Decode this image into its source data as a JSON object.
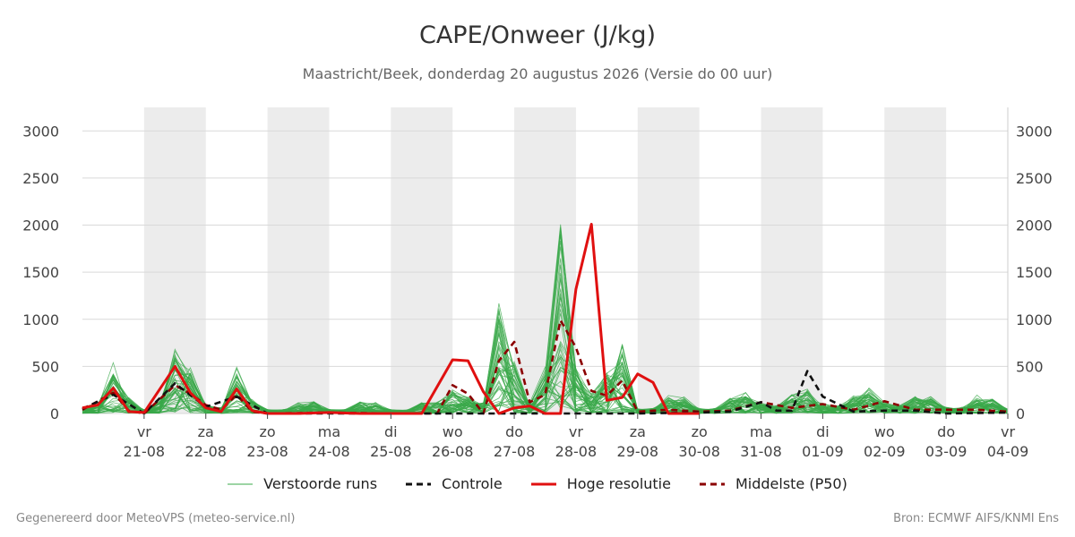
{
  "title": "CAPE/Onweer (J/kg)",
  "subtitle": "Maastricht/Beek, donderdag 20 augustus 2026 (Versie do 00 uur)",
  "footer_left": "Gegenereerd door MeteoVPS (meteo-service.nl)",
  "footer_right": "Bron: ECMWF AIFS/KNMI Ens",
  "legend": [
    {
      "label": "Verstoorde runs",
      "color": "#3aa84a",
      "style": "thin"
    },
    {
      "label": "Controle",
      "color": "#111111",
      "style": "dashed"
    },
    {
      "label": "Hoge resolutie",
      "color": "#e01010",
      "style": "solid"
    },
    {
      "label": "Middelste (P50)",
      "color": "#8b0000",
      "style": "dashed"
    }
  ],
  "chart_data": {
    "type": "line",
    "ylim": [
      0,
      3250
    ],
    "yticks": [
      "0",
      "500",
      "1000",
      "1500",
      "2000",
      "2500",
      "3000"
    ],
    "x_start": "2026-08-20T00:00",
    "x_end": "2026-09-04T00:00",
    "day_labels": [
      {
        "day": "vr",
        "date": "21-08"
      },
      {
        "day": "za",
        "date": "22-08"
      },
      {
        "day": "zo",
        "date": "23-08"
      },
      {
        "day": "ma",
        "date": "24-08"
      },
      {
        "day": "di",
        "date": "25-08"
      },
      {
        "day": "wo",
        "date": "26-08"
      },
      {
        "day": "do",
        "date": "27-08"
      },
      {
        "day": "vr",
        "date": "28-08"
      },
      {
        "day": "za",
        "date": "29-08"
      },
      {
        "day": "zo",
        "date": "30-08"
      },
      {
        "day": "ma",
        "date": "31-08"
      },
      {
        "day": "di",
        "date": "01-09"
      },
      {
        "day": "wo",
        "date": "02-09"
      },
      {
        "day": "do",
        "date": "03-09"
      },
      {
        "day": "vr",
        "date": "04-09"
      }
    ],
    "shaded_days": [
      "2026-08-21",
      "2026-08-23",
      "2026-08-25",
      "2026-08-27",
      "2026-08-29",
      "2026-08-31",
      "2026-09-02"
    ],
    "grid": true,
    "series": [
      {
        "name": "Hoge resolutie",
        "color": "#e01010",
        "style": "solid",
        "x": [
          "2026-08-20T00:00",
          "2026-08-20T06:00",
          "2026-08-20T12:00",
          "2026-08-20T18:00",
          "2026-08-21T00:00",
          "2026-08-21T12:00",
          "2026-08-21T18:00",
          "2026-08-22T00:00",
          "2026-08-22T06:00",
          "2026-08-22T12:00",
          "2026-08-22T18:00",
          "2026-08-23T00:00",
          "2026-08-23T12:00",
          "2026-08-24T00:00",
          "2026-08-24T12:00",
          "2026-08-25T00:00",
          "2026-08-25T12:00",
          "2026-08-26T00:00",
          "2026-08-26T06:00",
          "2026-08-26T12:00",
          "2026-08-26T18:00",
          "2026-08-27T00:00",
          "2026-08-27T06:00",
          "2026-08-27T12:00",
          "2026-08-27T18:00",
          "2026-08-28T00:00",
          "2026-08-28T06:00",
          "2026-08-28T12:00",
          "2026-08-28T18:00",
          "2026-08-29T00:00",
          "2026-08-29T06:00",
          "2026-08-29T12:00",
          "2026-08-30T00:00"
        ],
        "values": [
          60,
          90,
          270,
          20,
          10,
          500,
          220,
          60,
          20,
          260,
          30,
          0,
          0,
          10,
          0,
          0,
          0,
          570,
          560,
          230,
          0,
          60,
          80,
          0,
          0,
          1320,
          2010,
          140,
          170,
          420,
          330,
          0,
          0
        ]
      },
      {
        "name": "Middelste (P50)",
        "color": "#8b0000",
        "style": "dashed",
        "x": [
          "2026-08-20T00:00",
          "2026-08-20T12:00",
          "2026-08-20T18:00",
          "2026-08-21T00:00",
          "2026-08-21T12:00",
          "2026-08-21T18:00",
          "2026-08-22T00:00",
          "2026-08-22T06:00",
          "2026-08-22T12:00",
          "2026-08-22T18:00",
          "2026-08-23T00:00",
          "2026-08-24T00:00",
          "2026-08-25T00:00",
          "2026-08-25T12:00",
          "2026-08-25T18:00",
          "2026-08-26T00:00",
          "2026-08-26T06:00",
          "2026-08-26T12:00",
          "2026-08-26T18:00",
          "2026-08-27T00:00",
          "2026-08-27T06:00",
          "2026-08-27T12:00",
          "2026-08-27T18:00",
          "2026-08-28T00:00",
          "2026-08-28T06:00",
          "2026-08-28T12:00",
          "2026-08-28T18:00",
          "2026-08-29T00:00",
          "2026-08-29T12:00",
          "2026-08-30T00:00",
          "2026-08-30T12:00",
          "2026-08-31T00:00",
          "2026-08-31T12:00",
          "2026-09-01T00:00",
          "2026-09-01T12:00",
          "2026-09-02T00:00",
          "2026-09-02T12:00",
          "2026-09-03T00:00",
          "2026-09-03T12:00",
          "2026-09-04T00:00"
        ],
        "values": [
          40,
          220,
          30,
          0,
          300,
          210,
          90,
          40,
          200,
          20,
          0,
          10,
          0,
          0,
          0,
          300,
          210,
          0,
          560,
          760,
          120,
          200,
          990,
          700,
          240,
          190,
          350,
          20,
          40,
          20,
          30,
          120,
          60,
          100,
          40,
          130,
          40,
          40,
          40,
          20
        ]
      },
      {
        "name": "Controle",
        "color": "#111111",
        "style": "dashed",
        "x": [
          "2026-08-20T00:00",
          "2026-08-20T12:00",
          "2026-08-21T00:00",
          "2026-08-21T12:00",
          "2026-08-22T00:00",
          "2026-08-22T12:00",
          "2026-08-23T00:00",
          "2026-08-24T00:00",
          "2026-08-25T00:00",
          "2026-08-26T00:00",
          "2026-08-27T00:00",
          "2026-08-28T00:00",
          "2026-08-29T00:00",
          "2026-08-30T00:00",
          "2026-08-30T12:00",
          "2026-08-31T00:00",
          "2026-08-31T06:00",
          "2026-08-31T12:00",
          "2026-08-31T18:00",
          "2026-09-01T00:00",
          "2026-09-01T12:00",
          "2026-09-02T00:00",
          "2026-09-02T12:00",
          "2026-09-03T00:00",
          "2026-09-04T00:00"
        ],
        "values": [
          50,
          200,
          0,
          320,
          70,
          180,
          0,
          0,
          0,
          0,
          0,
          0,
          0,
          10,
          20,
          120,
          30,
          30,
          450,
          180,
          20,
          30,
          30,
          0,
          10
        ]
      }
    ],
    "ensemble_note": "Verstoorde runs"
  }
}
